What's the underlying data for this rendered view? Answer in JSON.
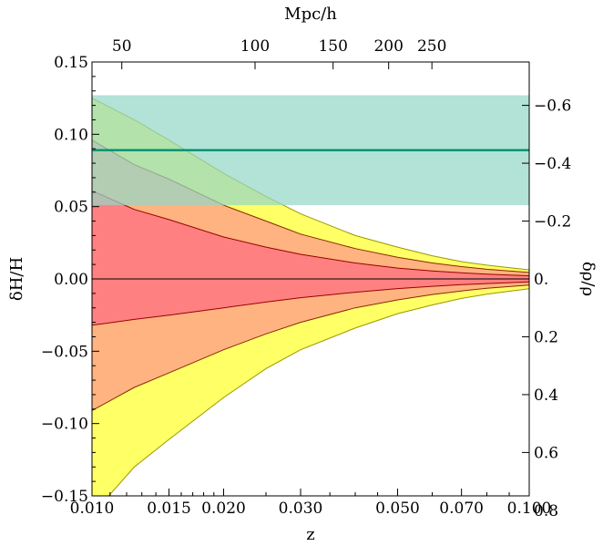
{
  "chart_data": {
    "type": "area",
    "title": "",
    "xlabel": "z",
    "ylabel": "δH/H",
    "top_axis_label": "Mpc/h",
    "right_axis_label": "δρ/ρ",
    "x_scale": "log",
    "xlim": [
      0.01,
      0.1
    ],
    "ylim": [
      -0.15,
      0.15
    ],
    "x_ticks": [
      {
        "value": 0.01,
        "label": "0.010"
      },
      {
        "value": 0.015,
        "label": "0.015"
      },
      {
        "value": 0.02,
        "label": "0.020"
      },
      {
        "value": 0.03,
        "label": "0.030"
      },
      {
        "value": 0.05,
        "label": "0.050"
      },
      {
        "value": 0.07,
        "label": "0.070"
      },
      {
        "value": 0.1,
        "label": "0.100"
      }
    ],
    "y_ticks": [
      {
        "value": 0.15,
        "label": "0.15"
      },
      {
        "value": 0.1,
        "label": "0.10"
      },
      {
        "value": 0.05,
        "label": "0.05"
      },
      {
        "value": 0.0,
        "label": "0.00"
      },
      {
        "value": -0.05,
        "label": "−0.05"
      },
      {
        "value": -0.1,
        "label": "−0.10"
      },
      {
        "value": -0.15,
        "label": "−0.15"
      }
    ],
    "top_ticks": [
      {
        "z": 0.0117,
        "label": "50"
      },
      {
        "z": 0.0236,
        "label": "100"
      },
      {
        "z": 0.0356,
        "label": "150"
      },
      {
        "z": 0.0477,
        "label": "200"
      },
      {
        "z": 0.0599,
        "label": "250"
      }
    ],
    "right_ticks": [
      {
        "y": 0.12,
        "label": "−0.6"
      },
      {
        "y": 0.08,
        "label": "−0.4"
      },
      {
        "y": 0.04,
        "label": "−0.2"
      },
      {
        "y": 0.0,
        "label": "0."
      },
      {
        "y": -0.04,
        "label": "0.2"
      },
      {
        "y": -0.08,
        "label": "0.4"
      },
      {
        "y": -0.12,
        "label": "0.6"
      },
      {
        "y": -0.16,
        "label": "0.8"
      }
    ],
    "measurement": {
      "value": 0.089,
      "band_low": 0.051,
      "band_high": 0.127,
      "line_color": "#009473",
      "band_color": "#96d7c6"
    },
    "series": [
      {
        "color": "#ffff66",
        "edge_color": "#999900",
        "x": [
          0.01,
          0.0125,
          0.015,
          0.02,
          0.025,
          0.03,
          0.04,
          0.05,
          0.06,
          0.07,
          0.08,
          0.09,
          0.1
        ],
        "upper": [
          0.125,
          0.11,
          0.096,
          0.073,
          0.057,
          0.045,
          0.03,
          0.022,
          0.016,
          0.012,
          0.0095,
          0.0078,
          0.0063
        ],
        "lower": [
          -0.163,
          -0.13,
          -0.111,
          -0.082,
          -0.062,
          -0.049,
          -0.034,
          -0.024,
          -0.018,
          -0.0135,
          -0.0105,
          -0.0085,
          -0.0068
        ]
      },
      {
        "color": "#ffb380",
        "edge_color": "#8b2a00",
        "x": [
          0.01,
          0.0125,
          0.015,
          0.02,
          0.025,
          0.03,
          0.04,
          0.05,
          0.06,
          0.07,
          0.08,
          0.09,
          0.1
        ],
        "upper": [
          0.096,
          0.079,
          0.069,
          0.051,
          0.04,
          0.031,
          0.021,
          0.015,
          0.011,
          0.0085,
          0.0067,
          0.0055,
          0.0045
        ],
        "lower": [
          -0.091,
          -0.075,
          -0.065,
          -0.049,
          -0.038,
          -0.03,
          -0.02,
          -0.0145,
          -0.0108,
          -0.0083,
          -0.0065,
          -0.0053,
          -0.0043
        ]
      },
      {
        "color": "#ff8080",
        "edge_color": "#990000",
        "x": [
          0.01,
          0.0125,
          0.015,
          0.02,
          0.025,
          0.03,
          0.04,
          0.05,
          0.06,
          0.07,
          0.08,
          0.09,
          0.1
        ],
        "upper": [
          0.061,
          0.048,
          0.041,
          0.029,
          0.022,
          0.017,
          0.011,
          0.0075,
          0.0055,
          0.0042,
          0.0033,
          0.0027,
          0.0022
        ],
        "lower": [
          -0.032,
          -0.028,
          -0.025,
          -0.02,
          -0.016,
          -0.013,
          -0.0092,
          -0.0067,
          -0.0051,
          -0.004,
          -0.0032,
          -0.0026,
          -0.0021
        ]
      }
    ]
  }
}
